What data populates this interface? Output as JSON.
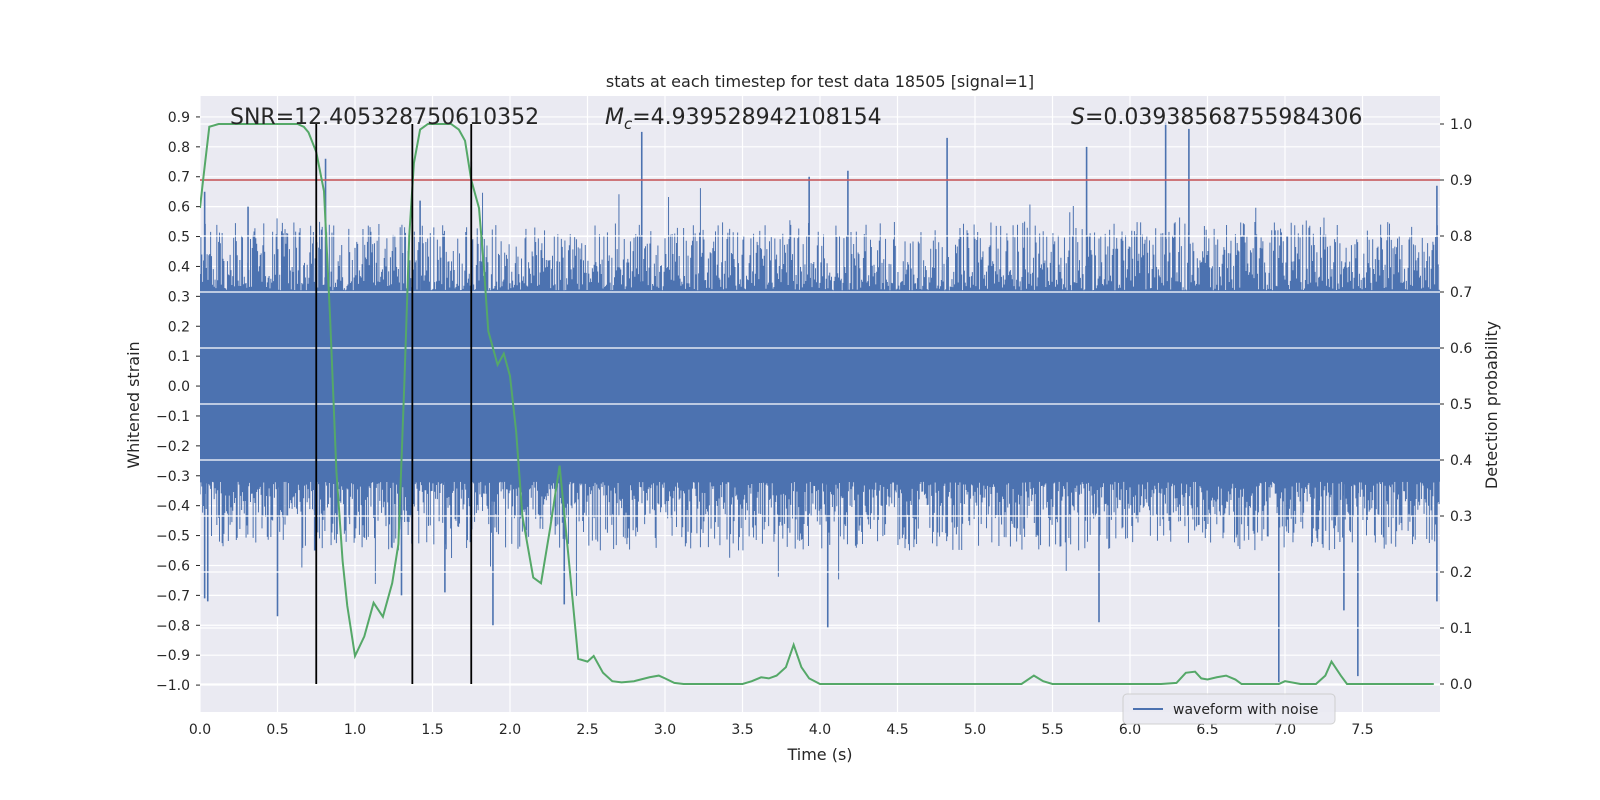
{
  "chart_data": {
    "type": "line",
    "title": "stats at each timestep for test data 18505 [signal=1]",
    "xlabel": "Time (s)",
    "ylabel_left": "Whitened strain",
    "ylabel_right": "Detection probability",
    "xlim": [
      0.0,
      8.0
    ],
    "ylim_left": [
      -1.09,
      0.97
    ],
    "ylim_right": [
      -0.05,
      1.05
    ],
    "x_ticks": [
      0.0,
      0.5,
      1.0,
      1.5,
      2.0,
      2.5,
      3.0,
      3.5,
      4.0,
      4.5,
      5.0,
      5.5,
      6.0,
      6.5,
      7.0,
      7.5
    ],
    "x_tick_labels": [
      "0.0",
      "0.5",
      "1.0",
      "1.5",
      "2.0",
      "2.5",
      "3.0",
      "3.5",
      "4.0",
      "4.5",
      "5.0",
      "5.5",
      "6.0",
      "6.5",
      "7.0",
      "7.5"
    ],
    "y_left_ticks": [
      0.9,
      0.8,
      0.7,
      0.6,
      0.5,
      0.4,
      0.3,
      0.2,
      0.1,
      0.0,
      -0.1,
      -0.2,
      -0.3,
      -0.4,
      -0.5,
      -0.6,
      -0.7,
      -0.8,
      -0.9,
      -1.0
    ],
    "y_left_tick_labels": [
      "0.9",
      "0.8",
      "0.7",
      "0.6",
      "0.5",
      "0.4",
      "0.3",
      "0.2",
      "0.1",
      "0.0",
      "−0.1",
      "−0.2",
      "−0.3",
      "−0.4",
      "−0.5",
      "−0.6",
      "−0.7",
      "−0.8",
      "−0.9",
      "−1.0"
    ],
    "y_right_ticks": [
      1.0,
      0.9,
      0.8,
      0.7,
      0.6,
      0.5,
      0.4,
      0.3,
      0.2,
      0.1,
      0.0
    ],
    "y_right_tick_labels": [
      "1.0",
      "0.9",
      "0.8",
      "0.7",
      "0.6",
      "0.5",
      "0.4",
      "0.3",
      "0.2",
      "0.1",
      "0.0"
    ],
    "annotations": {
      "snr": "SNR=12.405328750610352",
      "mc_symbol": "M",
      "mc_sub": "c",
      "mc_value": "=4.939528942108154",
      "s_symbol": "S",
      "s_value": "=0.03938568755984306"
    },
    "threshold": {
      "value": 0.9,
      "axis": "right",
      "color": "#c44e52"
    },
    "event_lines_x": [
      0.75,
      1.37,
      1.75
    ],
    "waveform": {
      "name": "waveform with noise",
      "color": "#4c72b0",
      "core_amplitude": 0.32,
      "typical_peak": 0.55,
      "notable_peaks": [
        [
          0.03,
          0.65
        ],
        [
          0.31,
          0.6
        ],
        [
          0.81,
          0.76
        ],
        [
          1.42,
          0.62
        ],
        [
          1.75,
          0.75
        ],
        [
          2.85,
          0.85
        ],
        [
          3.93,
          0.7
        ],
        [
          4.18,
          0.72
        ],
        [
          4.82,
          0.83
        ],
        [
          5.72,
          0.8
        ],
        [
          6.23,
          0.88
        ],
        [
          6.38,
          0.86
        ],
        [
          7.98,
          0.67
        ]
      ],
      "notable_troughs": [
        [
          0.03,
          -0.71
        ],
        [
          0.05,
          -0.72
        ],
        [
          0.5,
          -0.77
        ],
        [
          0.74,
          -0.55
        ],
        [
          1.3,
          -0.7
        ],
        [
          1.58,
          -0.69
        ],
        [
          1.89,
          -0.8
        ],
        [
          2.35,
          -0.73
        ],
        [
          4.05,
          -0.81
        ],
        [
          5.8,
          -0.79
        ],
        [
          6.96,
          -0.99
        ],
        [
          7.38,
          -0.75
        ],
        [
          7.47,
          -0.97
        ],
        [
          7.98,
          -0.72
        ]
      ]
    },
    "probability": {
      "name": "detection probability",
      "color": "#55a868",
      "x": [
        0.0,
        0.02,
        0.06,
        0.12,
        0.2,
        0.3,
        0.4,
        0.5,
        0.55,
        0.6,
        0.63,
        0.67,
        0.7,
        0.75,
        0.8,
        0.84,
        0.88,
        0.92,
        0.95,
        1.0,
        1.06,
        1.12,
        1.18,
        1.24,
        1.28,
        1.32,
        1.35,
        1.38,
        1.42,
        1.47,
        1.52,
        1.58,
        1.62,
        1.67,
        1.71,
        1.75,
        1.8,
        1.83,
        1.86,
        1.92,
        1.96,
        2.0,
        2.04,
        2.08,
        2.15,
        2.2,
        2.26,
        2.32,
        2.38,
        2.44,
        2.5,
        2.54,
        2.6,
        2.66,
        2.72,
        2.8,
        2.9,
        2.96,
        3.0,
        3.06,
        3.12,
        3.2,
        3.3,
        3.4,
        3.5,
        3.56,
        3.62,
        3.67,
        3.72,
        3.78,
        3.83,
        3.88,
        3.93,
        4.0,
        4.1,
        4.2,
        4.3,
        4.5,
        4.7,
        4.9,
        5.0,
        5.1,
        5.2,
        5.3,
        5.38,
        5.44,
        5.5,
        5.6,
        5.7,
        5.8,
        5.9,
        6.0,
        6.1,
        6.2,
        6.3,
        6.36,
        6.42,
        6.46,
        6.5,
        6.56,
        6.62,
        6.68,
        6.72,
        6.76,
        6.8,
        6.9,
        6.96,
        7.0,
        7.1,
        7.2,
        7.26,
        7.3,
        7.36,
        7.4,
        7.5,
        7.6,
        7.7,
        7.8,
        7.9,
        7.96
      ],
      "y": [
        0.85,
        0.9,
        0.995,
        1.0,
        1.0,
        1.0,
        1.0,
        1.0,
        1.0,
        1.0,
        1.0,
        0.995,
        0.985,
        0.95,
        0.88,
        0.65,
        0.38,
        0.22,
        0.14,
        0.05,
        0.085,
        0.145,
        0.12,
        0.18,
        0.25,
        0.55,
        0.8,
        0.93,
        0.99,
        1.0,
        1.0,
        1.0,
        1.0,
        0.99,
        0.97,
        0.9,
        0.85,
        0.75,
        0.63,
        0.57,
        0.59,
        0.55,
        0.45,
        0.3,
        0.19,
        0.18,
        0.28,
        0.39,
        0.22,
        0.045,
        0.04,
        0.05,
        0.02,
        0.005,
        0.003,
        0.005,
        0.012,
        0.015,
        0.01,
        0.002,
        0.0,
        0.0,
        0.0,
        0.0,
        0.0,
        0.005,
        0.012,
        0.01,
        0.015,
        0.03,
        0.07,
        0.03,
        0.01,
        0.0,
        0.0,
        0.0,
        0.0,
        0.0,
        0.0,
        0.0,
        0.0,
        0.0,
        0.0,
        0.0,
        0.015,
        0.005,
        0.0,
        0.0,
        0.0,
        0.0,
        0.0,
        0.0,
        0.0,
        0.0,
        0.002,
        0.02,
        0.022,
        0.01,
        0.008,
        0.012,
        0.015,
        0.008,
        0.0,
        0.0,
        0.0,
        0.0,
        0.0,
        0.005,
        0.0,
        0.0,
        0.015,
        0.04,
        0.015,
        0.0,
        0.0,
        0.0,
        0.0,
        0.0,
        0.0,
        0.0
      ]
    },
    "legend": {
      "label": "waveform with noise",
      "placement": "lower-right"
    }
  }
}
